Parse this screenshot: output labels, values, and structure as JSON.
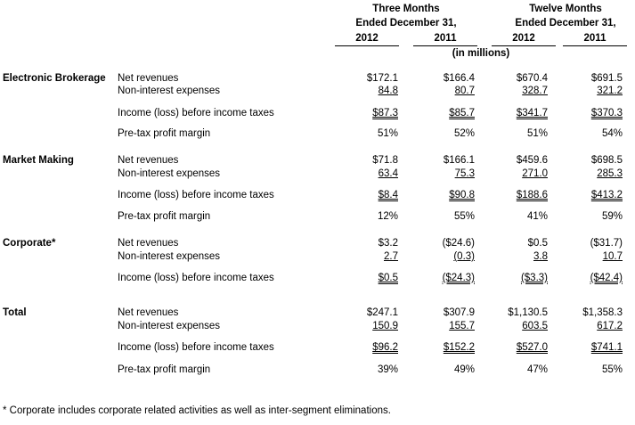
{
  "headers": {
    "three_months": [
      "Three Months",
      "Ended December 31,"
    ],
    "twelve_months": [
      "Twelve Months",
      "Ended December 31,"
    ],
    "years": [
      "2012",
      "2011",
      "2012",
      "2011"
    ],
    "units": "(in millions)"
  },
  "segments": [
    {
      "name": "Electronic Brokerage",
      "rows": [
        {
          "label": "Net revenues",
          "values": [
            "$172.1",
            "$166.4",
            "$670.4",
            "$691.5"
          ]
        },
        {
          "label": "Non-interest expenses",
          "values": [
            "84.8",
            "80.7",
            "328.7",
            "321.2"
          ]
        },
        {
          "label": "Income (loss) before income taxes",
          "values": [
            "$87.3",
            "$85.7",
            "$341.7",
            "$370.3"
          ]
        },
        {
          "label": "Pre-tax profit margin",
          "values": [
            "51%",
            "52%",
            "51%",
            "54%"
          ]
        }
      ]
    },
    {
      "name": "Market Making",
      "rows": [
        {
          "label": "Net revenues",
          "values": [
            "$71.8",
            "$166.1",
            "$459.6",
            "$698.5"
          ]
        },
        {
          "label": "Non-interest expenses",
          "values": [
            "63.4",
            "75.3",
            "271.0",
            "285.3"
          ]
        },
        {
          "label": "Income (loss) before income taxes",
          "values": [
            "$8.4",
            "$90.8",
            "$188.6",
            "$413.2"
          ]
        },
        {
          "label": "Pre-tax profit margin",
          "values": [
            "12%",
            "55%",
            "41%",
            "59%"
          ]
        }
      ]
    },
    {
      "name": "Corporate*",
      "rows": [
        {
          "label": "Net revenues",
          "values": [
            "$3.2",
            "($24.6)",
            "$0.5",
            "($31.7)"
          ]
        },
        {
          "label": "Non-interest expenses",
          "values": [
            "2.7",
            "(0.3)",
            "3.8",
            "10.7"
          ]
        },
        {
          "label": "Income (loss) before income taxes",
          "values": [
            "$0.5",
            "($24.3)",
            "($3.3)",
            "($42.4)"
          ]
        }
      ]
    },
    {
      "name": "Total",
      "rows": [
        {
          "label": "Net revenues",
          "values": [
            "$247.1",
            "$307.9",
            "$1,130.5",
            "$1,358.3"
          ]
        },
        {
          "label": "Non-interest expenses",
          "values": [
            "150.9",
            "155.7",
            "603.5",
            "617.2"
          ]
        },
        {
          "label": "Income (loss) before income taxes",
          "values": [
            "$96.2",
            "$152.2",
            "$527.0",
            "$741.1"
          ]
        },
        {
          "label": "Pre-tax profit margin",
          "values": [
            "39%",
            "49%",
            "47%",
            "55%"
          ]
        }
      ]
    }
  ],
  "footnote": "*  Corporate includes corporate related activities as well as inter-segment eliminations."
}
